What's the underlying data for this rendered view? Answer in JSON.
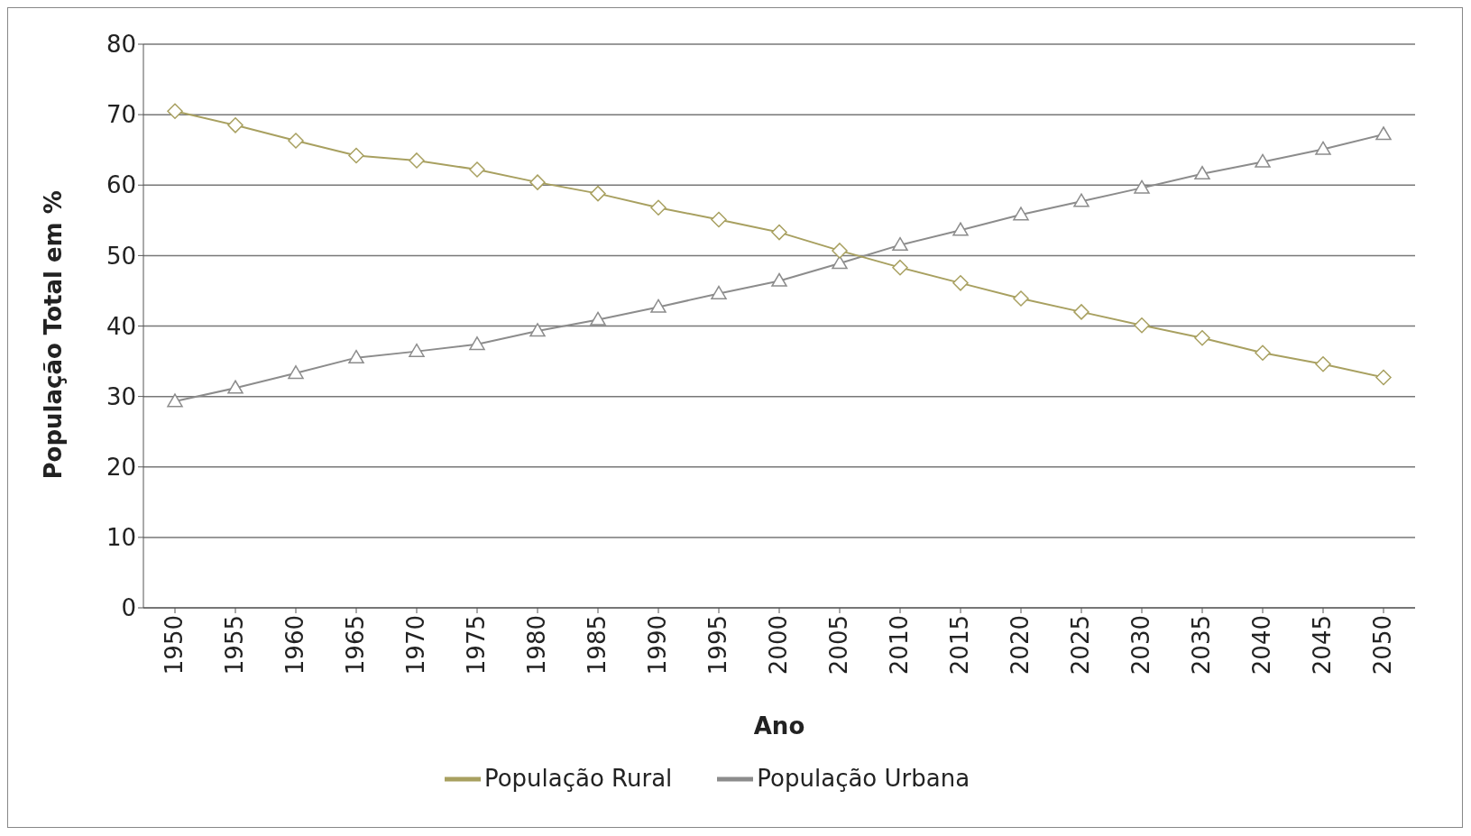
{
  "chart_data": {
    "type": "line",
    "xlabel": "Ano",
    "ylabel": "População  Total em %",
    "categories": [
      "1950",
      "1955",
      "1960",
      "1965",
      "1970",
      "1975",
      "1980",
      "1985",
      "1990",
      "1995",
      "2000",
      "2005",
      "2010",
      "2015",
      "2020",
      "2025",
      "2030",
      "2035",
      "2040",
      "2045",
      "2050"
    ],
    "series": [
      {
        "name": "População Urbana",
        "color": "#8c8c8c",
        "marker": "triangle",
        "values": [
          29.3,
          31.2,
          33.3,
          35.5,
          36.4,
          37.4,
          39.3,
          40.9,
          42.7,
          44.6,
          46.4,
          48.9,
          51.5,
          53.6,
          55.8,
          57.7,
          59.6,
          61.6,
          63.3,
          65.1,
          67.2
        ]
      },
      {
        "name": "População Rural",
        "color": "#a8a060",
        "marker": "diamond",
        "values": [
          70.5,
          68.5,
          66.3,
          64.2,
          63.5,
          62.2,
          60.4,
          58.8,
          56.8,
          55.1,
          53.3,
          50.7,
          48.3,
          46.1,
          43.9,
          42.0,
          40.1,
          38.3,
          36.2,
          34.6,
          32.7
        ]
      }
    ],
    "ylim": [
      0,
      80
    ],
    "yticks": [
      0,
      10,
      20,
      30,
      40,
      50,
      60,
      70,
      80
    ],
    "grid": "y",
    "legend": "bottom"
  }
}
